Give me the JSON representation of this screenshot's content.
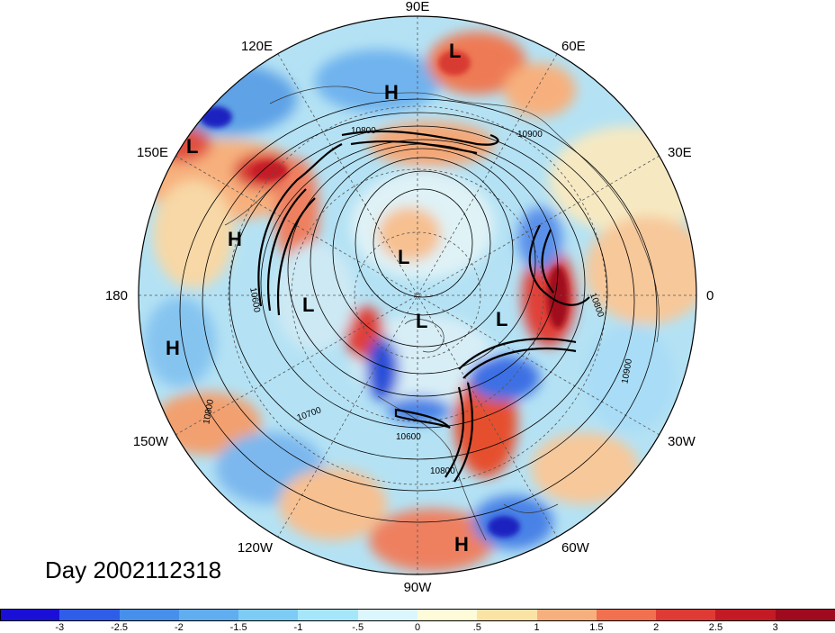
{
  "chart_data": {
    "type": "polar-stereographic map",
    "title": "Day 2002112318",
    "longitude_labels": [
      "90E",
      "60E",
      "30E",
      "0",
      "30W",
      "60W",
      "90W",
      "120W",
      "150W",
      "180",
      "150E",
      "120E"
    ],
    "pressure_centers": [
      {
        "label": "L"
      },
      {
        "label": "H"
      },
      {
        "label": "L"
      },
      {
        "label": "H"
      },
      {
        "label": "L"
      },
      {
        "label": "L"
      },
      {
        "label": "L"
      },
      {
        "label": "L"
      },
      {
        "label": "H"
      },
      {
        "label": "H"
      }
    ],
    "contour_labels": [
      "10900",
      "10800",
      "10900",
      "10800",
      "10700",
      "10600",
      "10800",
      "10600",
      "10800"
    ],
    "colorbar": {
      "levels": [
        "-3",
        "-2.5",
        "-2",
        "-1.5",
        "-1",
        "-.5",
        "0",
        ".5",
        "1",
        "1.5",
        "2",
        "2.5",
        "3"
      ],
      "colors": [
        "#1a0fd6",
        "#2e5ee8",
        "#4690ec",
        "#60aef0",
        "#7cccf5",
        "#a6e6fb",
        "#dcf6fd",
        "#fdfbd8",
        "#fbe3a6",
        "#f7b07d",
        "#f07050",
        "#e03a35",
        "#c41a25",
        "#a00a1e"
      ]
    }
  }
}
